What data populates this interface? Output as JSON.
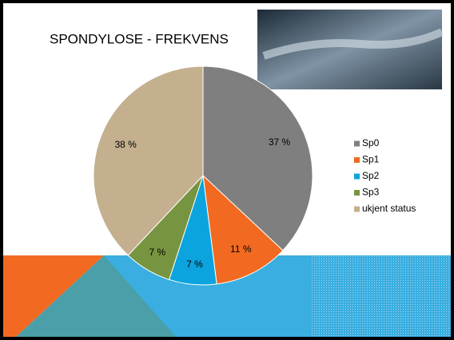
{
  "chart_data": {
    "type": "pie",
    "title": "SPONDYLOSE - FREKVENS",
    "categories": [
      "Sp0",
      "Sp1",
      "Sp2",
      "Sp3",
      "ukjent status"
    ],
    "values": [
      37,
      11,
      7,
      7,
      38
    ],
    "value_labels": [
      "37 %",
      "11 %",
      "7 %",
      "7 %",
      "38 %"
    ],
    "colors": [
      "#7f7f7f",
      "#f26a21",
      "#0ba4de",
      "#779440",
      "#c4b08e"
    ],
    "legend": "right"
  }
}
